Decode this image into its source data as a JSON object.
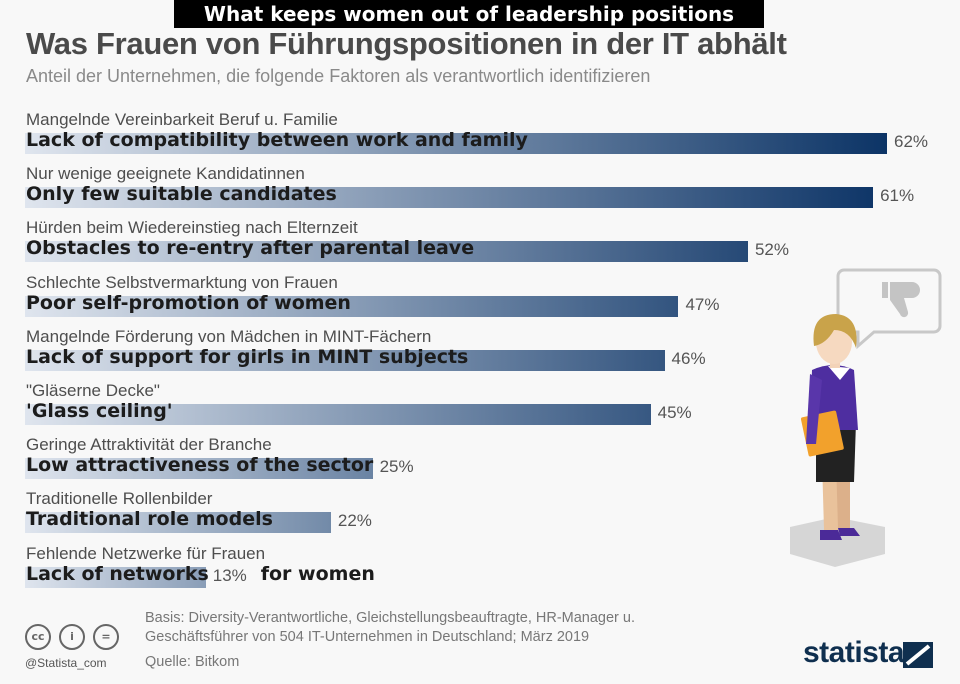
{
  "overlay_title": "What keeps women out of leadership positions",
  "chart_data": {
    "type": "bar",
    "orientation": "horizontal",
    "title": "Was Frauen von Führungspositionen in der IT abhält",
    "subtitle": "Anteil der Unternehmen, die folgende Faktoren als verantwortlich identifizieren",
    "categories_de": [
      "Mangelnde Vereinbarkeit Beruf u. Familie",
      "Nur wenige geeignete Kandidatinnen",
      "Hürden beim Wiedereinstieg nach Elternzeit",
      "Schlechte Selbstvermarktung von Frauen",
      "Mangelnde Förderung von Mädchen in MINT-Fächern",
      "\"Gläserne Decke\"",
      "Geringe Attraktivität der Branche",
      "Traditionelle Rollenbilder",
      "Fehlende Netzwerke für Frauen"
    ],
    "categories_en": [
      "Lack of compatibility between work and family",
      "Only few suitable candidates",
      "Obstacles to re-entry after parental leave",
      "Poor self-promotion of women",
      "Lack of support for girls in MINT subjects",
      "'Glass ceiling'",
      "Low attractiveness of the sector",
      "Traditional role models",
      "Lack of networks"
    ],
    "en_suffix_last": "for women",
    "values": [
      62,
      61,
      52,
      47,
      46,
      45,
      25,
      22,
      13
    ],
    "value_labels": [
      "62%",
      "61%",
      "52%",
      "47%",
      "46%",
      "45%",
      "25%",
      "22%",
      "13%"
    ],
    "xlim": [
      0,
      62
    ],
    "unit": "%",
    "grid": false,
    "colors": {
      "bar_start": "#dfe5ee",
      "bar_end": "#0c3466"
    }
  },
  "footer": {
    "basis_line1": "Basis: Diversity-Verantwortliche, Gleichstellungsbeauftragte, HR-Manager u.",
    "basis_line2": "Geschäftsführer von 504 IT-Unternehmen in Deutschland; März 2019",
    "source": "Quelle: Bitkom",
    "handle": "@Statista_com",
    "logo": "statista",
    "license_icons": [
      "cc",
      "i",
      "="
    ]
  }
}
